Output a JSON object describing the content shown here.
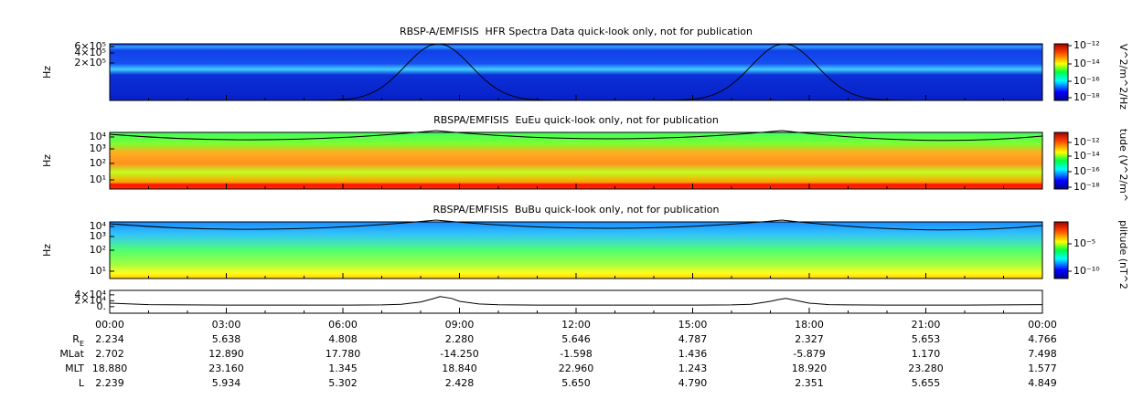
{
  "panels": [
    {
      "title": "RBSP-A/EMFISIS  HFR Spectra Data quick-look only, not for publication",
      "ylabel": "Hz",
      "yticks": [
        "6×10⁵",
        "4×10⁵",
        "2×10⁵"
      ],
      "colorbar": {
        "label": "V^2/m^2/Hz",
        "ticks": [
          "10⁻¹²",
          "10⁻¹⁴",
          "10⁻¹⁶",
          "10⁻¹⁸"
        ]
      }
    },
    {
      "title": "RBSPA/EMFISIS  EuEu quick-look only, not for publication",
      "ylabel": "Hz",
      "yticks": [
        "10⁴",
        "10³",
        "10²",
        "10¹"
      ],
      "colorbar": {
        "label": "tude (V^2/m^",
        "ticks": [
          "10⁻¹²",
          "10⁻¹⁴",
          "10⁻¹⁶",
          "10⁻¹⁸"
        ]
      }
    },
    {
      "title": "RBSPA/EMFISIS  BuBu quick-look only, not for publication",
      "ylabel": "Hz",
      "yticks": [
        "10⁴",
        "10³",
        "10²",
        "10¹"
      ],
      "colorbar": {
        "label": "plitude (nT^2",
        "ticks": [
          "10⁻⁵",
          "10⁻¹⁰"
        ]
      }
    }
  ],
  "line_panel": {
    "ylim": [
      -22000,
      55000
    ],
    "yticks": [
      {
        "value": 40000,
        "label": "4×10⁴"
      },
      {
        "value": 20000,
        "label": "2×10⁴"
      },
      {
        "value": 0,
        "label": "0."
      }
    ],
    "x": [
      0,
      1,
      2,
      3,
      4,
      5,
      6,
      7,
      7.5,
      8,
      8.3,
      8.5,
      8.8,
      9,
      9.5,
      10,
      11,
      12,
      13,
      14,
      15,
      16,
      16.5,
      17,
      17.2,
      17.4,
      17.7,
      18,
      18.5,
      19,
      20,
      21,
      22,
      23,
      24
    ],
    "values": [
      12000,
      7000,
      6000,
      5500,
      5500,
      5500,
      5500,
      6000,
      8000,
      16000,
      26000,
      34000,
      28000,
      18000,
      9000,
      6500,
      5500,
      5500,
      5500,
      5500,
      5500,
      6000,
      8000,
      18000,
      24000,
      28000,
      20000,
      12000,
      7000,
      6000,
      5500,
      5500,
      5500,
      6000,
      7000
    ]
  },
  "time_axis": {
    "xlim": [
      0,
      24
    ],
    "ticks": [
      {
        "value": 0,
        "label": "00:00"
      },
      {
        "value": 3,
        "label": "03:00"
      },
      {
        "value": 6,
        "label": "06:00"
      },
      {
        "value": 9,
        "label": "09:00"
      },
      {
        "value": 12,
        "label": "12:00"
      },
      {
        "value": 15,
        "label": "15:00"
      },
      {
        "value": 18,
        "label": "18:00"
      },
      {
        "value": 21,
        "label": "21:00"
      },
      {
        "value": 24,
        "label": "00:00"
      }
    ]
  },
  "ephemeris": {
    "rows": [
      {
        "label": "R",
        "sub": "E",
        "values": [
          "2.234",
          "5.638",
          "4.808",
          "2.280",
          "5.646",
          "4.787",
          "2.327",
          "5.653",
          "4.766"
        ]
      },
      {
        "label": "MLat",
        "values": [
          "2.702",
          "12.890",
          "17.780",
          "-14.250",
          "-1.598",
          "1.436",
          "-5.879",
          "1.170",
          "7.498"
        ]
      },
      {
        "label": "MLT",
        "values": [
          "18.880",
          "23.160",
          "1.345",
          "18.840",
          "22.960",
          "1.243",
          "18.920",
          "23.280",
          "1.577"
        ]
      },
      {
        "label": "L",
        "values": [
          "2.239",
          "5.934",
          "5.302",
          "2.428",
          "5.650",
          "4.790",
          "2.351",
          "5.655",
          "4.849"
        ]
      }
    ]
  }
}
